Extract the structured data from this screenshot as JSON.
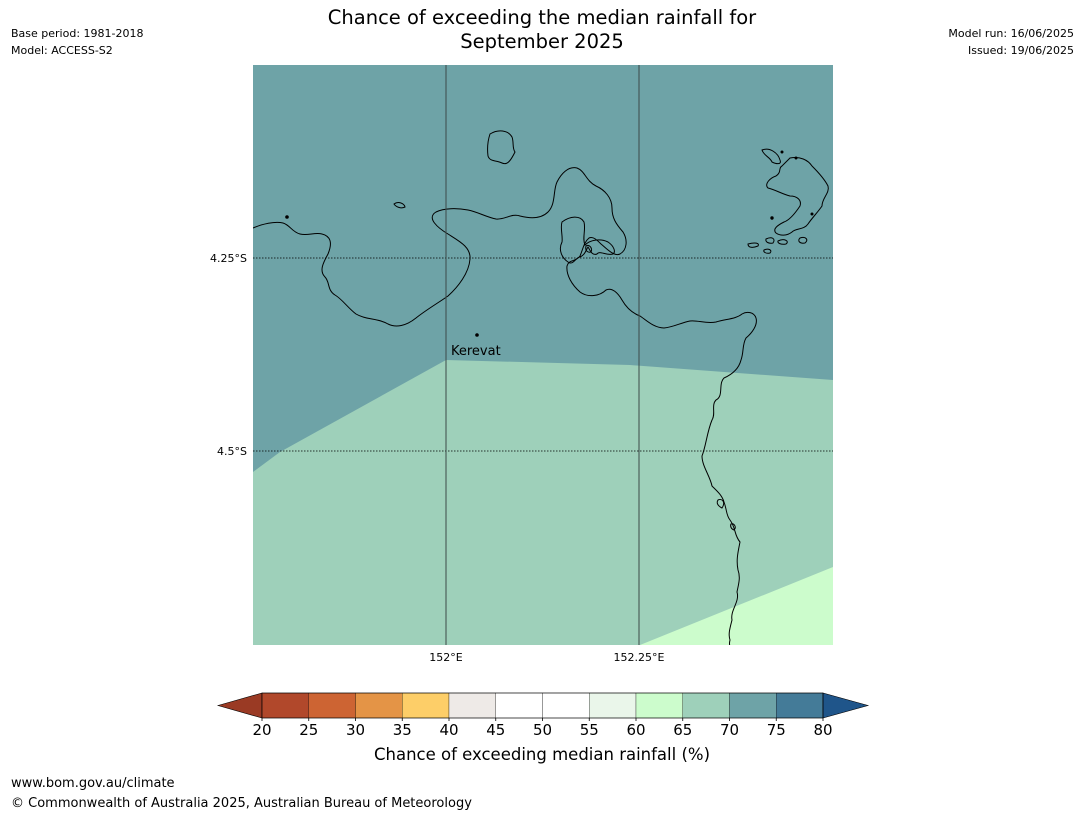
{
  "header": {
    "title_line1": "Chance of exceeding the median rainfall for",
    "title_line2": "September 2025",
    "base_period": "Base period: 1981-2018",
    "model": "Model: ACCESS-S2",
    "model_run": "Model run: 16/06/2025",
    "issued": "Issued: 19/06/2025"
  },
  "map": {
    "latitude_labels": [
      "4.25°S",
      "4.5°S"
    ],
    "longitude_labels": [
      "152°E",
      "152.25°E"
    ],
    "place": {
      "name": "Kerevat"
    },
    "zones": [
      {
        "category": "70-75",
        "color": "#6ea3a7"
      },
      {
        "category": "65-70",
        "color": "#9ed0ba"
      },
      {
        "category": "60-65",
        "color": "#ccfccc"
      }
    ],
    "coastline_color": "#000000"
  },
  "colorbar": {
    "title": "Chance of exceeding median rainfall (%)",
    "ticks": [
      "20",
      "25",
      "30",
      "35",
      "40",
      "45",
      "50",
      "55",
      "60",
      "65",
      "70",
      "75",
      "80"
    ],
    "colors": [
      "#b1482b",
      "#cd6433",
      "#e49446",
      "#fdce68",
      "#eeeae7",
      "#ffffff",
      "#ffffff",
      "#eaf6ea",
      "#ccfccc",
      "#9ed0ba",
      "#6ea3a7",
      "#447b98"
    ],
    "under_color": "#9a3a24",
    "over_color": "#1f558a"
  },
  "footer": {
    "url": "www.bom.gov.au/climate",
    "copyright": "© Commonwealth of Australia 2025, Australian Bureau of Meteorology"
  }
}
